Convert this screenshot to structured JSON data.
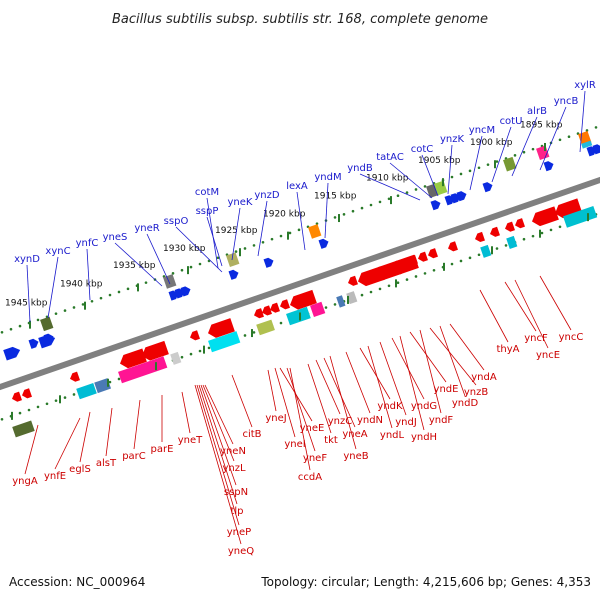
{
  "title": "Bacillus subtilis subsp. subtilis str. 168, complete genome",
  "footer": {
    "accession": "Accession: NC_000964",
    "topology": "Topology: circular; Length: 4,215,606 bp; Genes: 4,353"
  },
  "colors": {
    "backbone": "#808080",
    "forward_label": "#1a1acc",
    "reverse_label": "#cc0000",
    "tick": "#2a7a2a",
    "forward_gene": "#0a2ae0",
    "reverse_gene": "#ee0000"
  },
  "scale_labels": [
    "1945 kbp",
    "1940 kbp",
    "1935 kbp",
    "1930 kbp",
    "1925 kbp",
    "1920 kbp",
    "1915 kbp",
    "1910 kbp",
    "1905 kbp",
    "1900 kbp",
    "1895 kbp"
  ],
  "forward_genes": [
    "xynD",
    "xynC",
    "ynfC",
    "yneS",
    "yneR",
    "sspO",
    "cotM",
    "sspP",
    "yneK",
    "ynzD",
    "lexA",
    "yndM",
    "yndB",
    "tatAC",
    "cotC",
    "ynzK",
    "yncM",
    "cotU",
    "alrB",
    "yncB",
    "xylR"
  ],
  "reverse_genes": [
    "yngA",
    "ynfE",
    "eglS",
    "alsT",
    "parC",
    "parE",
    "yneT",
    "citB",
    "yneN",
    "ynzL",
    "sspN",
    "tlp",
    "yneP",
    "yneQ",
    "yneJ",
    "yneI",
    "yneE",
    "yneF",
    "ccdA",
    "tkt",
    "ynzC",
    "yneA",
    "yneB",
    "yndN",
    "yndK",
    "yndL",
    "yndJ",
    "yndG",
    "yndH",
    "yndE",
    "yndF",
    "ynzB",
    "yndD",
    "yndA",
    "thyA",
    "yncF",
    "yncE",
    "yncC"
  ]
}
